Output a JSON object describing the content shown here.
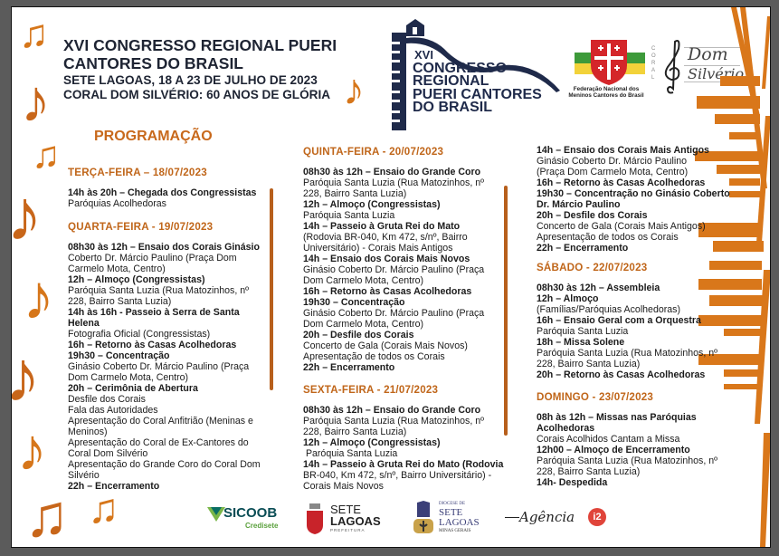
{
  "header": {
    "title_line1": "XVI CONGRESSO REGIONAL PUERI",
    "title_line2": "CANTORES DO BRASIL",
    "subtitle_line1": "SETE LAGOAS, 18 A 23 DE JULHO DE 2023",
    "subtitle_line2": "CORAL DOM SILVÉRIO: 60 ANOS DE GLÓRIA"
  },
  "event_logo": {
    "line1": "XVI",
    "line2": "CONGRESSO",
    "line3": "REGIONAL",
    "line4": "PUERI CANTORES",
    "line5": "DO BRASIL"
  },
  "federation_logo": {
    "line1": "Federação Nacional dos",
    "line2": "Meninos Cantores do Brasil"
  },
  "coral_logo": {
    "side": "CORAL",
    "line1": "Dom",
    "line2": "Silvério"
  },
  "section_title": "PROGRAMAÇÃO",
  "colors": {
    "accent": "#c0661a",
    "note": "#d6761a",
    "text": "#1b1b1b",
    "navy": "#1f2a4a"
  },
  "days": [
    {
      "heading": "TERÇA-FEIRA – 18/07/2023",
      "lines": [
        {
          "t": "14h às 20h – Chegada dos Congressistas",
          "b": true
        },
        {
          "t": "Paróquias Acolhedoras",
          "b": false
        }
      ]
    },
    {
      "heading": "QUARTA-FEIRA - 19/07/2023",
      "lines": [
        {
          "t": "08h30 às 12h – Ensaio dos Corais Ginásio",
          "b": true
        },
        {
          "t": "Coberto Dr. Márcio Paulino (Praça Dom",
          "b": false
        },
        {
          "t": "Carmelo Mota, Centro)",
          "b": false
        },
        {
          "t": "12h – Almoço (Congressistas)",
          "b": true
        },
        {
          "t": "Paróquia Santa Luzia (Rua Matozinhos, nº",
          "b": false
        },
        {
          "t": "228, Bairro Santa Luzia)",
          "b": false
        },
        {
          "t": "14h às 16h - Passeio à Serra de Santa",
          "b": true
        },
        {
          "t": "Helena",
          "b": true
        },
        {
          "t": "Fotografia Oficial (Congressistas)",
          "b": false
        },
        {
          "t": "16h – Retorno às Casas Acolhedoras",
          "b": true
        },
        {
          "t": "19h30 – Concentração",
          "b": true
        },
        {
          "t": "Ginásio Coberto Dr. Márcio Paulino (Praça",
          "b": false
        },
        {
          "t": "Dom Carmelo Mota, Centro)",
          "b": false
        },
        {
          "t": "20h – Cerimônia de Abertura",
          "b": true
        },
        {
          "t": "Desfile dos Corais",
          "b": false
        },
        {
          "t": "Fala das Autoridades",
          "b": false
        },
        {
          "t": "Apresentação do Coral Anfitrião (Meninas e",
          "b": false
        },
        {
          "t": "Meninos)",
          "b": false
        },
        {
          "t": "Apresentação do Coral de Ex-Cantores do",
          "b": false
        },
        {
          "t": "Coral Dom Silvério",
          "b": false
        },
        {
          "t": "Apresentação do Grande Coro do Coral Dom",
          "b": false
        },
        {
          "t": "Silvério",
          "b": false
        },
        {
          "t": "22h – Encerramento",
          "b": true
        }
      ]
    },
    {
      "heading": "QUINTA-FEIRA - 20/07/2023",
      "lines": [
        {
          "t": "08h30 às 12h – Ensaio do Grande Coro",
          "b": true
        },
        {
          "t": "Paróquia Santa Luzia (Rua Matozinhos, nº",
          "b": false
        },
        {
          "t": "228, Bairro Santa Luzia)",
          "b": false
        },
        {
          "t": "12h – Almoço (Congressistas)",
          "b": true
        },
        {
          "t": "Paróquia Santa Luzia",
          "b": false
        },
        {
          "t": "14h – Passeio à Gruta Rei do Mato",
          "b": true
        },
        {
          "t": "(Rodovia BR-040, Km 472, s/nº, Bairro",
          "b": false
        },
        {
          "t": "Universitário) - Corais Mais Antigos",
          "b": false
        },
        {
          "t": "14h – Ensaio dos Corais Mais Novos",
          "b": true
        },
        {
          "t": "Ginásio Coberto Dr. Márcio Paulino (Praça",
          "b": false
        },
        {
          "t": "Dom Carmelo Mota, Centro)",
          "b": false
        },
        {
          "t": "16h – Retorno às Casas Acolhedoras",
          "b": true
        },
        {
          "t": "19h30 – Concentração",
          "b": true
        },
        {
          "t": "Ginásio Coberto Dr. Márcio Paulino (Praça",
          "b": false
        },
        {
          "t": "Dom Carmelo Mota, Centro)",
          "b": false
        },
        {
          "t": "20h – Desfile dos Corais",
          "b": true
        },
        {
          "t": "Concerto de Gala (Corais Mais Novos)",
          "b": false
        },
        {
          "t": "Apresentação de todos os Corais",
          "b": false
        },
        {
          "t": "22h – Encerramento",
          "b": true
        }
      ]
    },
    {
      "heading": "SEXTA-FEIRA - 21/07/2023",
      "lines": [
        {
          "t": "08h30 às 12h – Ensaio do Grande Coro",
          "b": true
        },
        {
          "t": "Paróquia Santa Luzia (Rua Matozinhos, nº",
          "b": false
        },
        {
          "t": "228, Bairro Santa Luzia)",
          "b": false
        },
        {
          "t": "12h – Almoço (Congressistas)",
          "b": true
        },
        {
          "t": " Paróquia Santa Luzia",
          "b": false
        },
        {
          "t": "14h – Passeio à Gruta Rei do Mato (Rodovia",
          "b": true,
          "mixed": "(Rodovia"
        },
        {
          "t": "BR-040, Km 472, s/nº, Bairro Universitário) -",
          "b": false
        },
        {
          "t": "Corais Mais Novos",
          "b": false
        }
      ]
    },
    {
      "heading": "",
      "lines": [
        {
          "t": "14h – Ensaio dos Corais Mais Antigos",
          "b": true
        },
        {
          "t": "Ginásio Coberto Dr. Márcio Paulino",
          "b": false
        },
        {
          "t": "(Praça Dom Carmelo Mota, Centro)",
          "b": false
        },
        {
          "t": "16h – Retorno às Casas Acolhedoras",
          "b": true
        },
        {
          "t": "19h30 – Concentração no Ginásio Coberto",
          "b": true
        },
        {
          "t": "Dr. Márcio Paulino",
          "b": true
        },
        {
          "t": "20h – Desfile dos Corais",
          "b": true
        },
        {
          "t": "Concerto de Gala (Corais Mais Antigos)",
          "b": false
        },
        {
          "t": "Apresentação de todos os Corais",
          "b": false
        },
        {
          "t": "22h – Encerramento",
          "b": true
        }
      ]
    },
    {
      "heading": "SÁBADO - 22/07/2023",
      "lines": [
        {
          "t": "08h30 às 12h – Assembleia",
          "b": true
        },
        {
          "t": "12h – Almoço",
          "b": true
        },
        {
          "t": "(Famílias/Paróquias Acolhedoras)",
          "b": false
        },
        {
          "t": "16h – Ensaio Geral com a Orquestra",
          "b": true
        },
        {
          "t": "Paróquia Santa Luzia",
          "b": false
        },
        {
          "t": "18h – Missa Solene",
          "b": true
        },
        {
          "t": "Paróquia Santa Luzia (Rua Matozinhos, nº",
          "b": false
        },
        {
          "t": "228, Bairro Santa Luzia)",
          "b": false
        },
        {
          "t": "20h – Retorno às Casas Acolhedoras",
          "b": true
        }
      ]
    },
    {
      "heading": "DOMINGO - 23/07/2023",
      "lines": [
        {
          "t": "08h às 12h – Missas nas Paróquias",
          "b": true
        },
        {
          "t": "Acolhedoras",
          "b": true
        },
        {
          "t": "Corais Acolhidos Cantam a Missa",
          "b": false
        },
        {
          "t": "12h00 – Almoço de Encerramento",
          "b": true
        },
        {
          "t": "Paróquia Santa Luzia (Rua Matozinhos, nº",
          "b": false
        },
        {
          "t": "228, Bairro Santa Luzia)",
          "b": false
        },
        {
          "t": "14h- Despedida",
          "b": true
        }
      ]
    }
  ],
  "sponsors": {
    "sicoob": {
      "name": "SICOOB",
      "sub": "Credisete"
    },
    "prefeitura": {
      "line1": "SETE",
      "line2": "LAGOAS",
      "line3": "PREFEITURA"
    },
    "diocese": {
      "line1": "DIOCESE DE",
      "line2": "SETE",
      "line3": "LAGOAS",
      "line4": "MINAS GERAIS"
    },
    "agencia": {
      "name": "Agência",
      "badge": "i2"
    }
  }
}
